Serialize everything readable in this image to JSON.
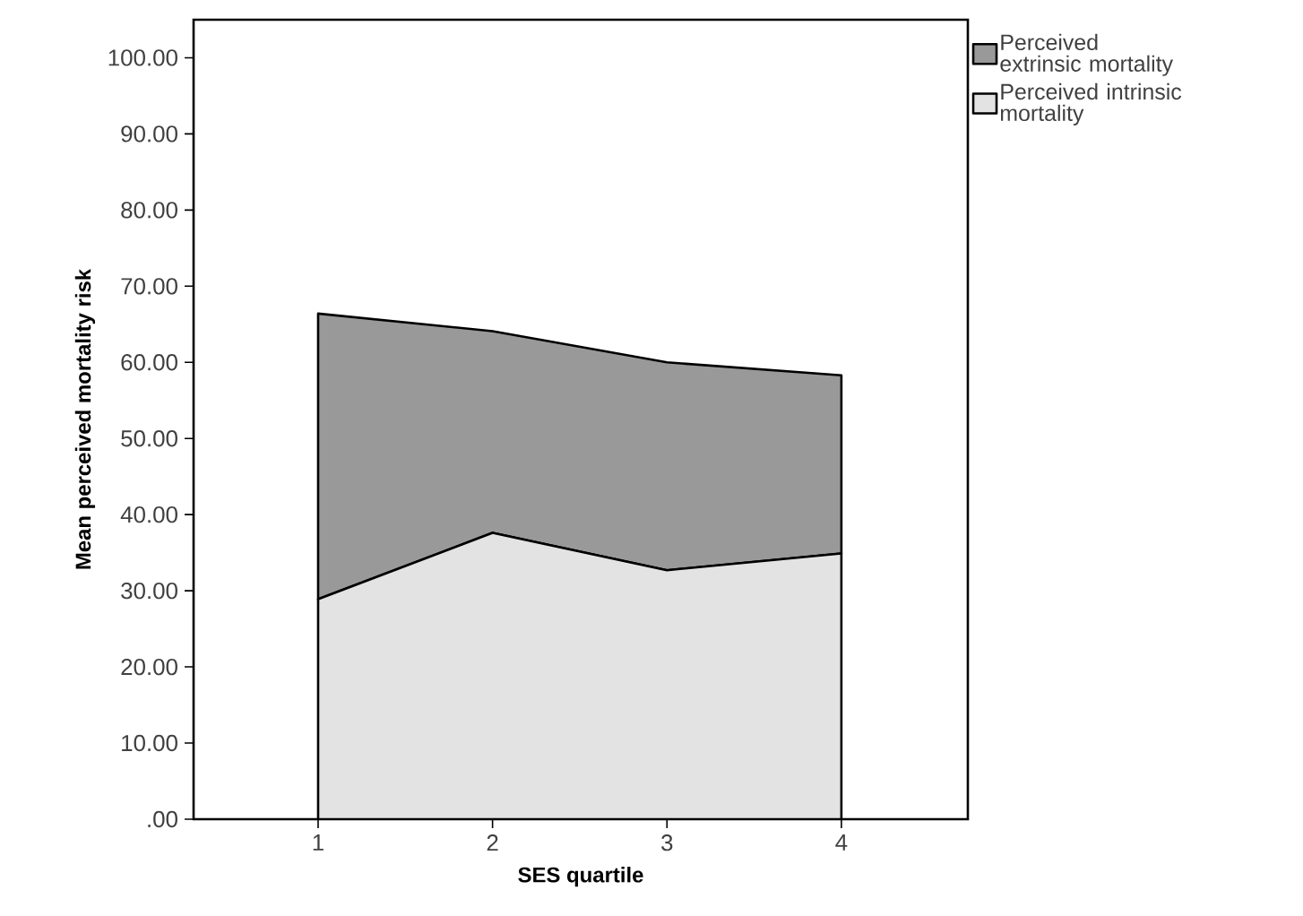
{
  "chart_data": {
    "type": "area",
    "stacked": true,
    "xlabel": "SES quartile",
    "ylabel": "Mean perceived mortality risk",
    "categories": [
      "1",
      "2",
      "3",
      "4"
    ],
    "series": [
      {
        "name": "Perceived intrinsic mortality",
        "color": "#e3e3e3",
        "values": [
          28.9,
          37.6,
          32.7,
          34.9
        ]
      },
      {
        "name": "Perceived extrinsic mortality",
        "color": "#999999",
        "values": [
          37.5,
          26.5,
          27.3,
          23.4
        ]
      }
    ],
    "ylim": [
      0,
      105
    ],
    "yticks": [
      {
        "value": 0,
        "label": ".00"
      },
      {
        "value": 10,
        "label": "10.00"
      },
      {
        "value": 20,
        "label": "20.00"
      },
      {
        "value": 30,
        "label": "30.00"
      },
      {
        "value": 40,
        "label": "40.00"
      },
      {
        "value": 50,
        "label": "50.00"
      },
      {
        "value": 60,
        "label": "60.00"
      },
      {
        "value": 70,
        "label": "70.00"
      },
      {
        "value": 80,
        "label": "80.00"
      },
      {
        "value": 90,
        "label": "90.00"
      },
      {
        "value": 100,
        "label": "100.00"
      }
    ],
    "grid": false,
    "legend": "top right"
  }
}
